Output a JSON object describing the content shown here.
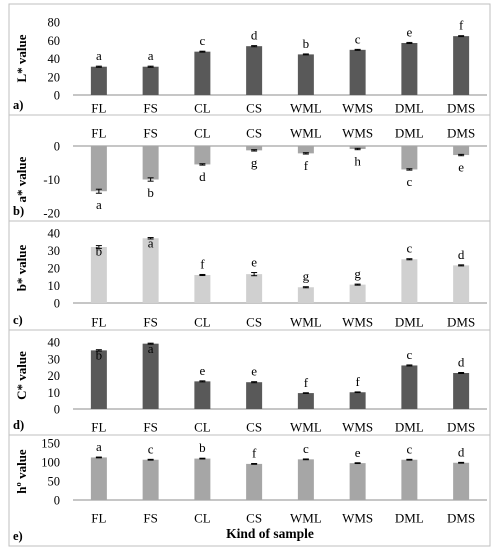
{
  "colors": {
    "dark": "#595959",
    "medium": "#a6a6a6",
    "light": "#d0d0d0",
    "axis": "#8c8c8c",
    "frame": "#bfbfbf"
  },
  "xlabel": "Kind of sample",
  "categories": [
    "FL",
    "FS",
    "CL",
    "CS",
    "WML",
    "WMS",
    "DML",
    "DMS"
  ],
  "chart_data": [
    {
      "panel": "a)",
      "type": "bar",
      "ylabel": "L* value",
      "categories": [
        "FL",
        "FS",
        "CL",
        "CS",
        "WML",
        "WMS",
        "DML",
        "DMS"
      ],
      "values": [
        31,
        31,
        47.5,
        53.5,
        44.5,
        49.5,
        57,
        64.5
      ],
      "errors": [
        0.6,
        0.6,
        0.5,
        0.6,
        0.5,
        0.5,
        0.6,
        0.5
      ],
      "letters": [
        "a",
        "a",
        "c",
        "d",
        "b",
        "c",
        "e",
        "f"
      ],
      "ylim": [
        0,
        80
      ],
      "yticks": [
        "0",
        "20",
        "40",
        "60",
        "80"
      ],
      "color": "dark"
    },
    {
      "panel": "b)",
      "type": "bar",
      "ylabel": "a* value",
      "categories": [
        "FL",
        "FS",
        "CL",
        "CS",
        "WML",
        "WMS",
        "DML",
        "DMS"
      ],
      "values": [
        -13.5,
        -10,
        -5.5,
        -1.3,
        -2.2,
        -0.9,
        -7,
        -2.7
      ],
      "errors": [
        0.6,
        0.5,
        0.2,
        0.2,
        0.2,
        0.2,
        0.2,
        0.2
      ],
      "letters": [
        "a",
        "b",
        "d",
        "g",
        "f",
        "h",
        "c",
        "e"
      ],
      "ylim": [
        -20,
        0
      ],
      "yticks": [
        "-20",
        "-10",
        "0"
      ],
      "color": "medium"
    },
    {
      "panel": "c)",
      "type": "bar",
      "ylabel": "b* value",
      "categories": [
        "FL",
        "FS",
        "CL",
        "CS",
        "WML",
        "WMS",
        "DML",
        "DMS"
      ],
      "values": [
        32,
        37,
        16,
        16.5,
        9,
        10.5,
        25,
        21.5
      ],
      "errors": [
        0.8,
        0.4,
        0.3,
        0.9,
        0.3,
        0.3,
        0.3,
        0.3
      ],
      "letters": [
        "b",
        "a",
        "f",
        "e",
        "g",
        "g",
        "c",
        "d"
      ],
      "ylim": [
        0,
        40
      ],
      "yticks": [
        "0",
        "10",
        "20",
        "30",
        "40"
      ],
      "color": "light"
    },
    {
      "panel": "d)",
      "type": "bar",
      "ylabel": "C* value",
      "categories": [
        "FL",
        "FS",
        "CL",
        "CS",
        "WML",
        "WMS",
        "DML",
        "DMS"
      ],
      "values": [
        35,
        39,
        16.5,
        16,
        9.5,
        10,
        26,
        21.5
      ],
      "errors": [
        0.4,
        0.3,
        0.3,
        0.3,
        0.2,
        0.2,
        0.3,
        0.3
      ],
      "letters": [
        "b",
        "a",
        "e",
        "e",
        "f",
        "f",
        "c",
        "d"
      ],
      "ylim": [
        0,
        40
      ],
      "yticks": [
        "0",
        "10",
        "20",
        "30",
        "40"
      ],
      "color": "dark"
    },
    {
      "panel": "e)",
      "type": "bar",
      "ylabel": "hº value",
      "categories": [
        "FL",
        "FS",
        "CL",
        "CS",
        "WML",
        "WMS",
        "DML",
        "DMS"
      ],
      "values": [
        112,
        106,
        109,
        95,
        107,
        97,
        106,
        98
      ],
      "errors": [
        1,
        1,
        1,
        1,
        1,
        1,
        1,
        1
      ],
      "letters": [
        "a",
        "c",
        "b",
        "f",
        "c",
        "e",
        "c",
        "d"
      ],
      "ylim": [
        0,
        150
      ],
      "yticks": [
        "0",
        "50",
        "100",
        "150"
      ],
      "color": "medium"
    }
  ]
}
